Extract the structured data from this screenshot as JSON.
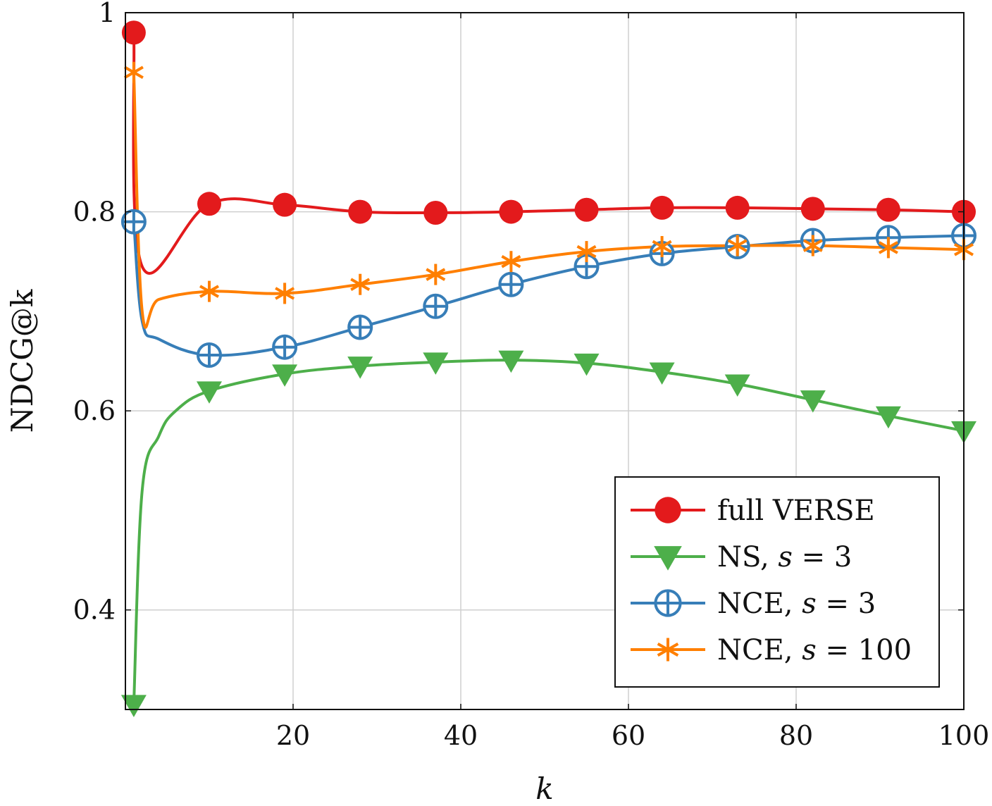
{
  "chart_data": {
    "type": "line",
    "xlabel": "k",
    "ylabel": "NDCG@k",
    "xlim": [
      0,
      100
    ],
    "ylim": [
      0.3,
      1.0
    ],
    "xticks": [
      20,
      40,
      60,
      80,
      100
    ],
    "xtick_labels": [
      "20",
      "40",
      "60",
      "80",
      "100"
    ],
    "yticks": [
      0.4,
      0.6,
      0.8,
      1.0
    ],
    "ytick_labels": [
      "0.4",
      "0.6",
      "0.8",
      "1"
    ],
    "grid": true,
    "legend_position": "bottom-right",
    "series": [
      {
        "name": "full VERSE",
        "legend_parts": [
          "full VERSE"
        ],
        "color": "#e31a1c",
        "marker": "circle",
        "x": [
          1,
          2,
          10,
          19,
          28,
          37,
          46,
          55,
          64,
          73,
          82,
          91,
          100
        ],
        "y": [
          0.98,
          0.745,
          0.808,
          0.807,
          0.8,
          0.799,
          0.8,
          0.802,
          0.804,
          0.804,
          0.803,
          0.802,
          0.8
        ],
        "marker_x": [
          1,
          10,
          19,
          28,
          37,
          46,
          55,
          64,
          73,
          82,
          91,
          100
        ]
      },
      {
        "name": "NS, s = 3",
        "legend_parts": [
          "NS, ",
          "s",
          " = 3"
        ],
        "color": "#4daf4a",
        "marker": "triangle-down",
        "x": [
          1,
          2,
          4,
          6,
          10,
          19,
          28,
          37,
          46,
          55,
          64,
          73,
          82,
          91,
          100
        ],
        "y": [
          0.305,
          0.52,
          0.575,
          0.6,
          0.62,
          0.637,
          0.645,
          0.649,
          0.651,
          0.648,
          0.639,
          0.627,
          0.611,
          0.595,
          0.58
        ],
        "marker_x": [
          1,
          10,
          19,
          28,
          37,
          46,
          55,
          64,
          73,
          82,
          91,
          100
        ]
      },
      {
        "name": "NCE, s = 3",
        "legend_parts": [
          "NCE, ",
          "s",
          " = 3"
        ],
        "color": "#377eb8",
        "marker": "oplus",
        "x": [
          1,
          2,
          4,
          10,
          19,
          28,
          37,
          46,
          55,
          64,
          73,
          82,
          91,
          100
        ],
        "y": [
          0.79,
          0.69,
          0.672,
          0.656,
          0.664,
          0.684,
          0.705,
          0.727,
          0.745,
          0.758,
          0.765,
          0.771,
          0.774,
          0.776
        ],
        "marker_x": [
          1,
          10,
          19,
          28,
          37,
          46,
          55,
          64,
          73,
          82,
          91,
          100
        ]
      },
      {
        "name": "NCE, s = 100",
        "legend_parts": [
          "NCE, ",
          "s",
          " = 100"
        ],
        "color": "#ff7f00",
        "marker": "asterisk",
        "x": [
          1,
          2,
          4,
          10,
          19,
          28,
          37,
          46,
          55,
          64,
          73,
          82,
          91,
          100
        ],
        "y": [
          0.94,
          0.7,
          0.712,
          0.72,
          0.718,
          0.727,
          0.737,
          0.75,
          0.76,
          0.765,
          0.766,
          0.766,
          0.764,
          0.762
        ],
        "marker_x": [
          1,
          10,
          19,
          28,
          37,
          46,
          55,
          64,
          73,
          82,
          91,
          100
        ]
      }
    ]
  }
}
